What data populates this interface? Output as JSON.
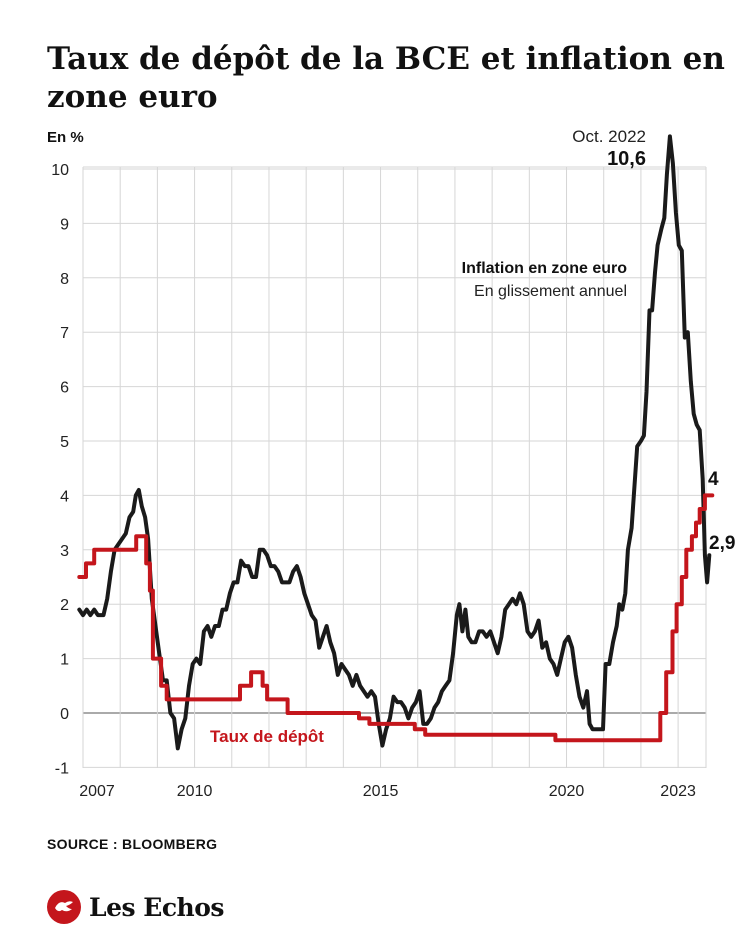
{
  "header": {
    "title": "Taux de dépôt de la BCE et inflation en zone euro"
  },
  "footer": {
    "source": "SOURCE : BLOOMBERG",
    "logo_text": "Les Echos"
  },
  "colors": {
    "inflation": "#1a1a1a",
    "deposit_rate": "#c4161c",
    "grid": "#d6d6d6",
    "zero_line": "#555555"
  },
  "chart_data": {
    "type": "line",
    "title": "Taux de dépôt de la BCE et inflation en zone euro",
    "ylabel": "En %",
    "xlabel": "",
    "xlim": [
      2007.0,
      2023.75
    ],
    "ylim": [
      -1,
      10.6
    ],
    "y_ticks": [
      "-1",
      "0",
      "1",
      "2",
      "3",
      "4",
      "5",
      "6",
      "7",
      "8",
      "9",
      "10"
    ],
    "x_ticks": [
      {
        "label": "2007",
        "x": 2007.0
      },
      {
        "label": "2010",
        "x": 2010.0
      },
      {
        "label": "2015",
        "x": 2015.0
      },
      {
        "label": "2020",
        "x": 2020.0
      },
      {
        "label": "2023",
        "x": 2023.0
      }
    ],
    "grid": true,
    "annotations": {
      "peak_date": "Oct. 2022",
      "peak_value": "10,6",
      "inflation_last": "2,9",
      "rate_last": "4",
      "inflation_name": "Inflation en zone euro",
      "inflation_sub": "En glissement annuel",
      "rate_name": "Taux de dépôt"
    },
    "series": [
      {
        "name": "Inflation en zone euro",
        "key": "inflation",
        "points": [
          [
            2006.9,
            1.9
          ],
          [
            2007.0,
            1.8
          ],
          [
            2007.1,
            1.9
          ],
          [
            2007.2,
            1.8
          ],
          [
            2007.3,
            1.9
          ],
          [
            2007.4,
            1.8
          ],
          [
            2007.55,
            1.8
          ],
          [
            2007.65,
            2.1
          ],
          [
            2007.75,
            2.6
          ],
          [
            2007.85,
            3.0
          ],
          [
            2007.95,
            3.1
          ],
          [
            2008.05,
            3.2
          ],
          [
            2008.15,
            3.3
          ],
          [
            2008.25,
            3.6
          ],
          [
            2008.35,
            3.7
          ],
          [
            2008.42,
            4.0
          ],
          [
            2008.5,
            4.1
          ],
          [
            2008.58,
            3.8
          ],
          [
            2008.67,
            3.6
          ],
          [
            2008.75,
            3.2
          ],
          [
            2008.85,
            2.1
          ],
          [
            2008.95,
            1.6
          ],
          [
            2009.05,
            1.1
          ],
          [
            2009.15,
            0.6
          ],
          [
            2009.25,
            0.6
          ],
          [
            2009.35,
            0.0
          ],
          [
            2009.45,
            -0.1
          ],
          [
            2009.55,
            -0.65
          ],
          [
            2009.65,
            -0.3
          ],
          [
            2009.75,
            -0.1
          ],
          [
            2009.85,
            0.5
          ],
          [
            2009.95,
            0.9
          ],
          [
            2010.05,
            1.0
          ],
          [
            2010.15,
            0.9
          ],
          [
            2010.25,
            1.5
          ],
          [
            2010.35,
            1.6
          ],
          [
            2010.45,
            1.4
          ],
          [
            2010.55,
            1.6
          ],
          [
            2010.65,
            1.6
          ],
          [
            2010.75,
            1.9
          ],
          [
            2010.85,
            1.9
          ],
          [
            2010.95,
            2.2
          ],
          [
            2011.05,
            2.4
          ],
          [
            2011.15,
            2.4
          ],
          [
            2011.25,
            2.8
          ],
          [
            2011.35,
            2.7
          ],
          [
            2011.45,
            2.7
          ],
          [
            2011.55,
            2.5
          ],
          [
            2011.65,
            2.5
          ],
          [
            2011.75,
            3.0
          ],
          [
            2011.85,
            3.0
          ],
          [
            2011.95,
            2.9
          ],
          [
            2012.05,
            2.7
          ],
          [
            2012.15,
            2.7
          ],
          [
            2012.25,
            2.6
          ],
          [
            2012.35,
            2.4
          ],
          [
            2012.45,
            2.4
          ],
          [
            2012.55,
            2.4
          ],
          [
            2012.65,
            2.6
          ],
          [
            2012.75,
            2.7
          ],
          [
            2012.85,
            2.5
          ],
          [
            2012.95,
            2.2
          ],
          [
            2013.05,
            2.0
          ],
          [
            2013.15,
            1.8
          ],
          [
            2013.25,
            1.7
          ],
          [
            2013.35,
            1.2
          ],
          [
            2013.45,
            1.4
          ],
          [
            2013.55,
            1.6
          ],
          [
            2013.65,
            1.3
          ],
          [
            2013.75,
            1.1
          ],
          [
            2013.85,
            0.7
          ],
          [
            2013.95,
            0.9
          ],
          [
            2014.05,
            0.8
          ],
          [
            2014.15,
            0.7
          ],
          [
            2014.25,
            0.5
          ],
          [
            2014.35,
            0.7
          ],
          [
            2014.45,
            0.5
          ],
          [
            2014.55,
            0.4
          ],
          [
            2014.65,
            0.3
          ],
          [
            2014.75,
            0.4
          ],
          [
            2014.85,
            0.3
          ],
          [
            2014.95,
            -0.2
          ],
          [
            2015.05,
            -0.6
          ],
          [
            2015.15,
            -0.3
          ],
          [
            2015.25,
            -0.1
          ],
          [
            2015.35,
            0.3
          ],
          [
            2015.45,
            0.2
          ],
          [
            2015.55,
            0.2
          ],
          [
            2015.65,
            0.1
          ],
          [
            2015.75,
            -0.1
          ],
          [
            2015.85,
            0.1
          ],
          [
            2015.95,
            0.2
          ],
          [
            2016.05,
            0.4
          ],
          [
            2016.15,
            -0.2
          ],
          [
            2016.25,
            -0.2
          ],
          [
            2016.35,
            -0.1
          ],
          [
            2016.45,
            0.1
          ],
          [
            2016.55,
            0.2
          ],
          [
            2016.65,
            0.4
          ],
          [
            2016.75,
            0.5
          ],
          [
            2016.85,
            0.6
          ],
          [
            2016.95,
            1.1
          ],
          [
            2017.05,
            1.8
          ],
          [
            2017.12,
            2.0
          ],
          [
            2017.2,
            1.5
          ],
          [
            2017.28,
            1.9
          ],
          [
            2017.36,
            1.4
          ],
          [
            2017.45,
            1.3
          ],
          [
            2017.55,
            1.3
          ],
          [
            2017.65,
            1.5
          ],
          [
            2017.75,
            1.5
          ],
          [
            2017.85,
            1.4
          ],
          [
            2017.95,
            1.5
          ],
          [
            2018.05,
            1.3
          ],
          [
            2018.15,
            1.1
          ],
          [
            2018.25,
            1.4
          ],
          [
            2018.35,
            1.9
          ],
          [
            2018.45,
            2.0
          ],
          [
            2018.55,
            2.1
          ],
          [
            2018.65,
            2.0
          ],
          [
            2018.75,
            2.2
          ],
          [
            2018.85,
            2.0
          ],
          [
            2018.95,
            1.5
          ],
          [
            2019.05,
            1.4
          ],
          [
            2019.15,
            1.5
          ],
          [
            2019.25,
            1.7
          ],
          [
            2019.35,
            1.2
          ],
          [
            2019.45,
            1.3
          ],
          [
            2019.55,
            1.0
          ],
          [
            2019.65,
            0.9
          ],
          [
            2019.75,
            0.7
          ],
          [
            2019.85,
            1.0
          ],
          [
            2019.95,
            1.3
          ],
          [
            2020.05,
            1.4
          ],
          [
            2020.15,
            1.2
          ],
          [
            2020.25,
            0.7
          ],
          [
            2020.35,
            0.3
          ],
          [
            2020.45,
            0.1
          ],
          [
            2020.55,
            0.4
          ],
          [
            2020.62,
            -0.2
          ],
          [
            2020.7,
            -0.3
          ],
          [
            2020.8,
            -0.3
          ],
          [
            2020.9,
            -0.3
          ],
          [
            2020.98,
            -0.3
          ],
          [
            2021.05,
            0.9
          ],
          [
            2021.15,
            0.9
          ],
          [
            2021.25,
            1.3
          ],
          [
            2021.35,
            1.6
          ],
          [
            2021.42,
            2.0
          ],
          [
            2021.5,
            1.9
          ],
          [
            2021.58,
            2.2
          ],
          [
            2021.65,
            3.0
          ],
          [
            2021.75,
            3.4
          ],
          [
            2021.82,
            4.1
          ],
          [
            2021.9,
            4.9
          ],
          [
            2022.0,
            5.0
          ],
          [
            2022.08,
            5.1
          ],
          [
            2022.15,
            5.9
          ],
          [
            2022.23,
            7.4
          ],
          [
            2022.3,
            7.4
          ],
          [
            2022.38,
            8.1
          ],
          [
            2022.45,
            8.6
          ],
          [
            2022.55,
            8.9
          ],
          [
            2022.63,
            9.1
          ],
          [
            2022.7,
            9.9
          ],
          [
            2022.78,
            10.6
          ],
          [
            2022.86,
            10.1
          ],
          [
            2022.94,
            9.2
          ],
          [
            2023.02,
            8.6
          ],
          [
            2023.1,
            8.5
          ],
          [
            2023.18,
            6.9
          ],
          [
            2023.26,
            7.0
          ],
          [
            2023.34,
            6.1
          ],
          [
            2023.42,
            5.5
          ],
          [
            2023.5,
            5.3
          ],
          [
            2023.58,
            5.2
          ],
          [
            2023.66,
            4.3
          ],
          [
            2023.72,
            2.9
          ],
          [
            2023.78,
            2.4
          ],
          [
            2023.84,
            2.9
          ]
        ]
      },
      {
        "name": "Taux de dépôt",
        "key": "deposit",
        "points": [
          [
            2006.9,
            2.5
          ],
          [
            2007.08,
            2.5
          ],
          [
            2007.08,
            2.75
          ],
          [
            2007.3,
            2.75
          ],
          [
            2007.3,
            3.0
          ],
          [
            2008.43,
            3.0
          ],
          [
            2008.43,
            3.25
          ],
          [
            2008.7,
            3.25
          ],
          [
            2008.7,
            2.75
          ],
          [
            2008.8,
            2.75
          ],
          [
            2008.8,
            2.25
          ],
          [
            2008.88,
            2.25
          ],
          [
            2008.88,
            1.0
          ],
          [
            2009.0,
            1.0
          ],
          [
            2009.0,
            1.0
          ],
          [
            2009.1,
            1.0
          ],
          [
            2009.1,
            0.5
          ],
          [
            2009.25,
            0.5
          ],
          [
            2009.25,
            0.25
          ],
          [
            2011.22,
            0.25
          ],
          [
            2011.22,
            0.5
          ],
          [
            2011.52,
            0.5
          ],
          [
            2011.52,
            0.75
          ],
          [
            2011.83,
            0.75
          ],
          [
            2011.83,
            0.5
          ],
          [
            2011.95,
            0.5
          ],
          [
            2011.95,
            0.25
          ],
          [
            2012.5,
            0.25
          ],
          [
            2012.5,
            0.0
          ],
          [
            2014.42,
            0.0
          ],
          [
            2014.42,
            -0.1
          ],
          [
            2014.7,
            -0.1
          ],
          [
            2014.7,
            -0.2
          ],
          [
            2015.92,
            -0.2
          ],
          [
            2015.92,
            -0.3
          ],
          [
            2016.2,
            -0.3
          ],
          [
            2016.2,
            -0.4
          ],
          [
            2019.7,
            -0.4
          ],
          [
            2019.7,
            -0.5
          ],
          [
            2022.52,
            -0.5
          ],
          [
            2022.52,
            0.0
          ],
          [
            2022.68,
            0.0
          ],
          [
            2022.68,
            0.75
          ],
          [
            2022.85,
            0.75
          ],
          [
            2022.85,
            1.5
          ],
          [
            2022.96,
            1.5
          ],
          [
            2022.96,
            2.0
          ],
          [
            2023.1,
            2.0
          ],
          [
            2023.1,
            2.5
          ],
          [
            2023.22,
            2.5
          ],
          [
            2023.22,
            3.0
          ],
          [
            2023.37,
            3.0
          ],
          [
            2023.37,
            3.25
          ],
          [
            2023.48,
            3.25
          ],
          [
            2023.48,
            3.5
          ],
          [
            2023.58,
            3.5
          ],
          [
            2023.58,
            3.75
          ],
          [
            2023.72,
            3.75
          ],
          [
            2023.72,
            4.0
          ],
          [
            2023.92,
            4.0
          ]
        ]
      }
    ]
  }
}
